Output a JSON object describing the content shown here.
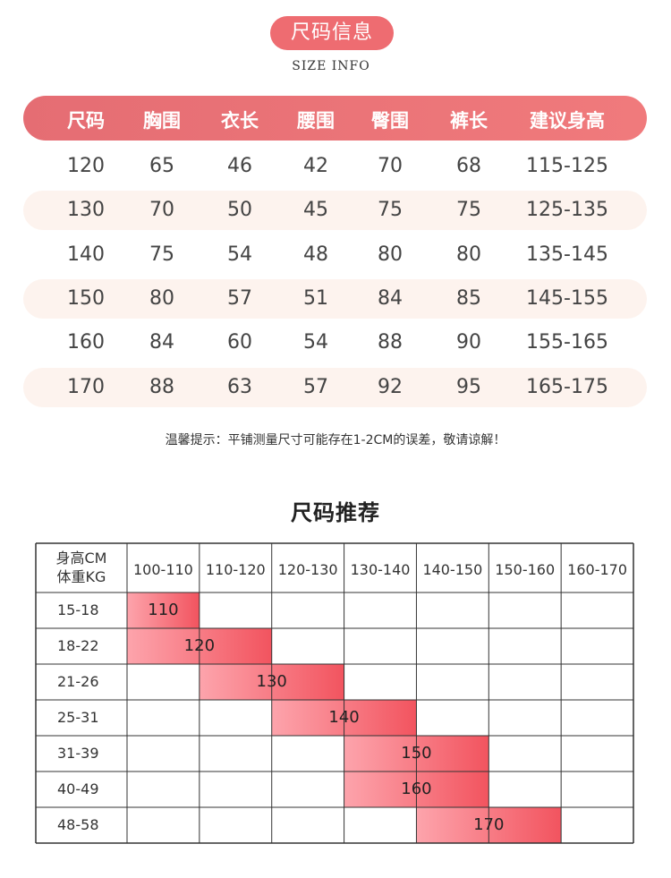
{
  "header": {
    "title": "尺码信息",
    "subtitle": "SIZE INFO"
  },
  "size_table": {
    "columns": [
      "尺码",
      "胸围",
      "衣长",
      "腰围",
      "臀围",
      "裤长",
      "建议身高"
    ],
    "rows": [
      [
        "120",
        "65",
        "46",
        "42",
        "70",
        "68",
        "115-125"
      ],
      [
        "130",
        "70",
        "50",
        "45",
        "75",
        "75",
        "125-135"
      ],
      [
        "140",
        "75",
        "54",
        "48",
        "80",
        "80",
        "135-145"
      ],
      [
        "150",
        "80",
        "57",
        "51",
        "84",
        "85",
        "145-155"
      ],
      [
        "160",
        "84",
        "60",
        "54",
        "88",
        "90",
        "155-165"
      ],
      [
        "170",
        "88",
        "63",
        "57",
        "92",
        "95",
        "165-175"
      ]
    ]
  },
  "tip": "温馨提示：平铺测量尺寸可能存在1-2CM的误差，敬请谅解！",
  "recommend": {
    "title": "尺码推荐",
    "corner_top": "身高CM",
    "corner_bottom": "体重KG",
    "heights": [
      "100-110",
      "110-120",
      "120-130",
      "130-140",
      "140-150",
      "150-160",
      "160-170"
    ],
    "weights": [
      "15-18",
      "18-22",
      "21-26",
      "25-31",
      "31-39",
      "40-49",
      "48-58"
    ],
    "recommendations": [
      {
        "size": "110",
        "from": 0,
        "to": 1
      },
      {
        "size": "120",
        "from": 0,
        "to": 2
      },
      {
        "size": "130",
        "from": 1,
        "to": 3
      },
      {
        "size": "140",
        "from": 2,
        "to": 4
      },
      {
        "size": "150",
        "from": 3,
        "to": 5
      },
      {
        "size": "160",
        "from": 3,
        "to": 5
      },
      {
        "size": "170",
        "from": 4,
        "to": 6
      }
    ],
    "bar_color_start": "#fda4ac",
    "bar_color_end": "#f2545f"
  }
}
